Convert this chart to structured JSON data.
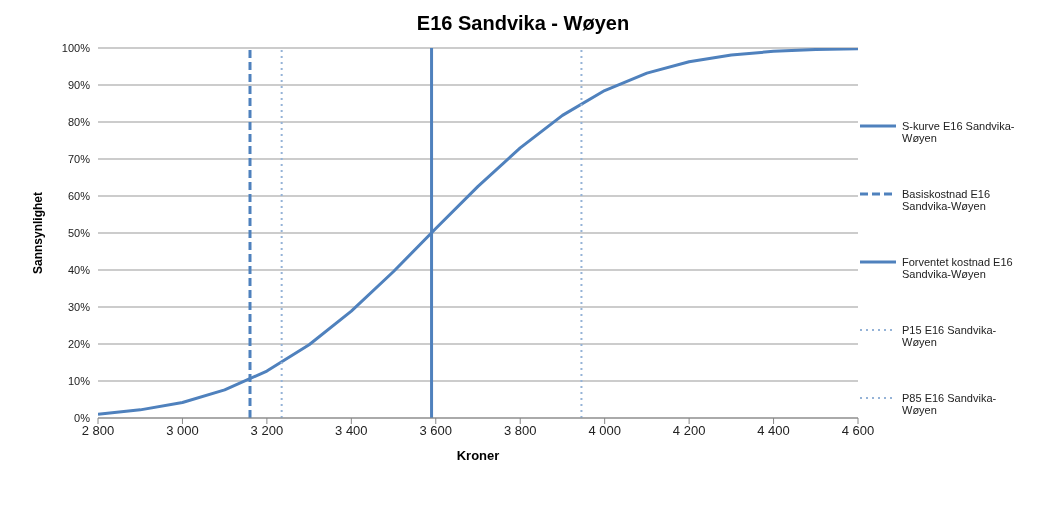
{
  "chart_data": {
    "type": "line",
    "title": "E16 Sandvika - Wøyen",
    "xlabel": "Kroner",
    "ylabel": "Sannsynlighet",
    "xlim": [
      2800,
      4600
    ],
    "xticks": [
      {
        "value": 2800,
        "label": "2 800"
      },
      {
        "value": 3000,
        "label": "3 000"
      },
      {
        "value": 3200,
        "label": "3 200"
      },
      {
        "value": 3400,
        "label": "3 400"
      },
      {
        "value": 3600,
        "label": "3 600"
      },
      {
        "value": 3800,
        "label": "3 800"
      },
      {
        "value": 4000,
        "label": "4 000"
      },
      {
        "value": 4200,
        "label": "4 200"
      },
      {
        "value": 4400,
        "label": "4 400"
      },
      {
        "value": 4600,
        "label": "4 600"
      }
    ],
    "ylim": [
      0,
      100
    ],
    "yticks": [
      {
        "value": 0,
        "label": "0%"
      },
      {
        "value": 10,
        "label": "10%"
      },
      {
        "value": 20,
        "label": "20%"
      },
      {
        "value": 30,
        "label": "30%"
      },
      {
        "value": 40,
        "label": "40%"
      },
      {
        "value": 50,
        "label": "50%"
      },
      {
        "value": 60,
        "label": "60%"
      },
      {
        "value": 70,
        "label": "70%"
      },
      {
        "value": 80,
        "label": "80%"
      },
      {
        "value": 90,
        "label": "90%"
      },
      {
        "value": 100,
        "label": "100%"
      }
    ],
    "grid": "y",
    "legend": "right",
    "marker": "none",
    "series": [
      {
        "name": "S-kurve E16 Sandvika-Wøyen",
        "color": "#4f81bd",
        "line_style": "solid",
        "x": [
          2800,
          2900,
          3000,
          3100,
          3200,
          3300,
          3400,
          3500,
          3600,
          3700,
          3800,
          3900,
          4000,
          4100,
          4200,
          4300,
          4400,
          4500,
          4600
        ],
        "values": [
          1,
          2.2,
          4.2,
          7.6,
          12.7,
          19.8,
          28.9,
          39.6,
          51.2,
          62.6,
          73,
          81.8,
          88.5,
          93.2,
          96.3,
          98.1,
          99.1,
          99.6,
          99.8
        ]
      },
      {
        "name": "Basiskostnad E16 Sandvika-Wøyen",
        "color": "#4f81bd",
        "line_style": "dashed",
        "x": [
          3160,
          3160
        ],
        "values": [
          0,
          100
        ]
      },
      {
        "name": "Forventet kostnad E16 Sandvika-Wøyen",
        "color": "#4f81bd",
        "line_style": "solid",
        "x": [
          3590,
          3590
        ],
        "values": [
          0,
          100
        ]
      },
      {
        "name": "P15 E16 Sandvika-Wøyen",
        "color": "#95b3d7",
        "line_style": "dotted",
        "x": [
          3235,
          3235
        ],
        "values": [
          0,
          100
        ]
      },
      {
        "name": "P85 E16 Sandvika-Wøyen",
        "color": "#95b3d7",
        "line_style": "dotted",
        "x": [
          3945,
          3945
        ],
        "values": [
          0,
          100
        ]
      }
    ]
  }
}
